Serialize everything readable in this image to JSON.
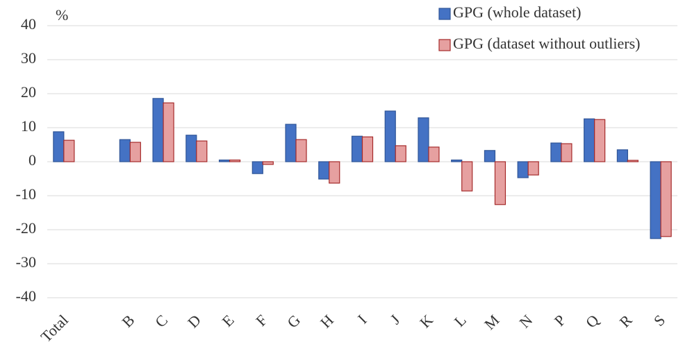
{
  "chart_data": {
    "type": "bar",
    "y_axis_label": "%",
    "categories": [
      "Total",
      null,
      "B",
      "C",
      "D",
      "E",
      "F",
      "G",
      "H",
      "I",
      "J",
      "K",
      "L",
      "M",
      "N",
      "P",
      "Q",
      "R",
      "S"
    ],
    "series": [
      {
        "name": "GPG (whole dataset)",
        "color": "#4472c4",
        "edge": "#2f5597",
        "values": [
          8.8,
          null,
          6.5,
          18.6,
          7.8,
          0.5,
          -3.5,
          11.0,
          -5.1,
          7.5,
          14.9,
          12.9,
          0.5,
          3.3,
          -4.7,
          5.5,
          12.6,
          3.5,
          -22.6
        ]
      },
      {
        "name": "GPG (dataset without outliers)",
        "color": "#e6a0a0",
        "edge": "#a52a2a",
        "values": [
          6.3,
          null,
          5.7,
          17.3,
          6.1,
          0.5,
          -0.8,
          6.5,
          -6.3,
          7.3,
          4.7,
          4.3,
          -8.6,
          -12.6,
          -3.9,
          5.3,
          12.4,
          0.4,
          -22.0
        ]
      }
    ],
    "ylim": [
      -40,
      40
    ],
    "yticks": [
      -40,
      -30,
      -20,
      -10,
      0,
      10,
      20,
      30,
      40
    ],
    "grid": true,
    "legend": "upper right"
  }
}
